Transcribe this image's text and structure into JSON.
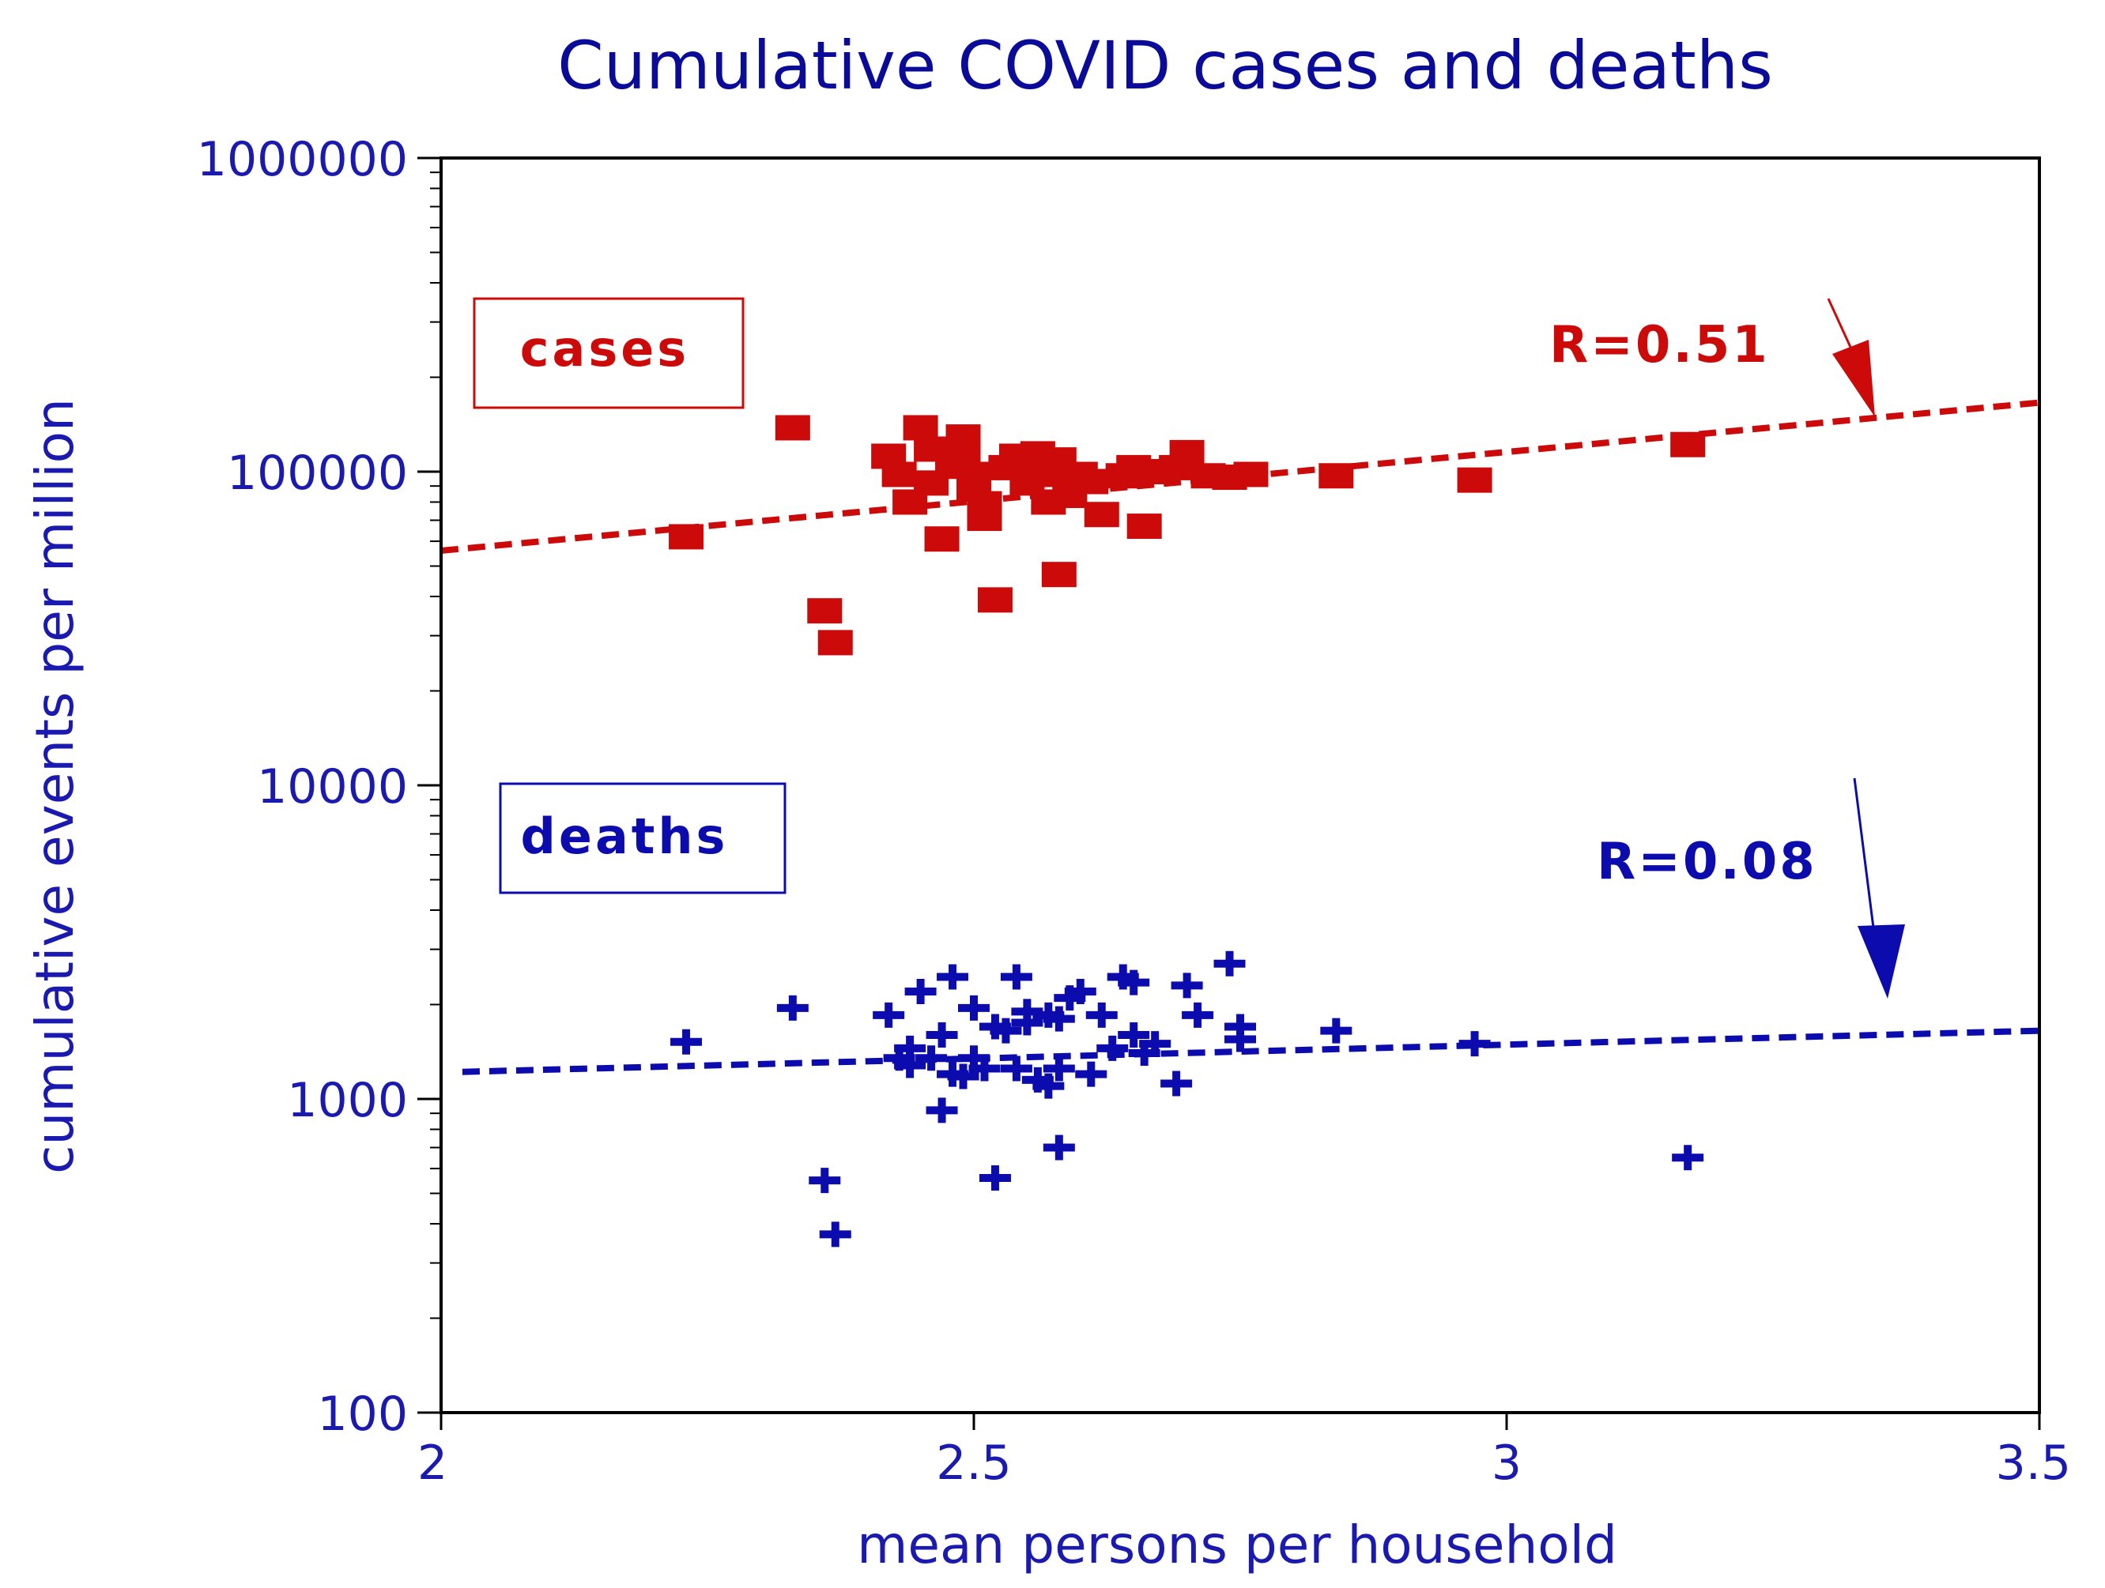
{
  "chart_data": {
    "type": "scatter",
    "title": "Cumulative COVID cases and deaths",
    "xlabel": "mean persons per household",
    "ylabel": "cumulative events per million",
    "xlim": [
      2,
      3.5
    ],
    "ylim": [
      100,
      1000000
    ],
    "yscale": "log",
    "x_ticks": [
      {
        "value": 2,
        "label": "2"
      },
      {
        "value": 2.5,
        "label": "2.5"
      },
      {
        "value": 3,
        "label": "3"
      },
      {
        "value": 3.5,
        "label": "3.5"
      }
    ],
    "y_ticks": [
      {
        "value": 100,
        "label": "100"
      },
      {
        "value": 1000,
        "label": "1000"
      },
      {
        "value": 10000,
        "label": "10000"
      },
      {
        "value": 100000,
        "label": "100000"
      },
      {
        "value": 1000000,
        "label": "1000000"
      }
    ],
    "series": [
      {
        "name": "cases",
        "color": "#cc0a0a",
        "marker": "square",
        "correlation_label": "R=0.51",
        "trend": [
          [
            2.0,
            56000
          ],
          [
            3.5,
            166000
          ]
        ],
        "points": [
          [
            2.23,
            62000
          ],
          [
            2.33,
            138000
          ],
          [
            2.36,
            36000
          ],
          [
            2.37,
            28500
          ],
          [
            2.42,
            112000
          ],
          [
            2.43,
            98000
          ],
          [
            2.44,
            80000
          ],
          [
            2.45,
            138000
          ],
          [
            2.46,
            118000
          ],
          [
            2.46,
            92000
          ],
          [
            2.47,
            61000
          ],
          [
            2.48,
            104000
          ],
          [
            2.49,
            129000
          ],
          [
            2.49,
            112000
          ],
          [
            2.5,
            88000
          ],
          [
            2.5,
            98000
          ],
          [
            2.51,
            79000
          ],
          [
            2.51,
            71000
          ],
          [
            2.52,
            39000
          ],
          [
            2.53,
            103000
          ],
          [
            2.54,
            112000
          ],
          [
            2.55,
            104000
          ],
          [
            2.55,
            92000
          ],
          [
            2.56,
            114000
          ],
          [
            2.57,
            80000
          ],
          [
            2.57,
            98000
          ],
          [
            2.58,
            109000
          ],
          [
            2.58,
            47000
          ],
          [
            2.59,
            84000
          ],
          [
            2.6,
            98000
          ],
          [
            2.61,
            93000
          ],
          [
            2.62,
            73000
          ],
          [
            2.64,
            97000
          ],
          [
            2.65,
            103000
          ],
          [
            2.66,
            67000
          ],
          [
            2.67,
            100000
          ],
          [
            2.69,
            103000
          ],
          [
            2.7,
            115000
          ],
          [
            2.72,
            97000
          ],
          [
            2.74,
            96000
          ],
          [
            2.76,
            98000
          ],
          [
            2.84,
            97000
          ],
          [
            2.97,
            94000
          ],
          [
            3.17,
            122000
          ]
        ]
      },
      {
        "name": "deaths",
        "color": "#0c0cae",
        "marker": "plus",
        "correlation_label": "R=0.08",
        "trend": [
          [
            2.02,
            1220
          ],
          [
            3.5,
            1650
          ]
        ],
        "points": [
          [
            2.23,
            1520
          ],
          [
            2.33,
            1950
          ],
          [
            2.36,
            550
          ],
          [
            2.37,
            370
          ],
          [
            2.42,
            1850
          ],
          [
            2.43,
            1350
          ],
          [
            2.44,
            1450
          ],
          [
            2.44,
            1280
          ],
          [
            2.45,
            2200
          ],
          [
            2.46,
            1350
          ],
          [
            2.47,
            1600
          ],
          [
            2.47,
            920
          ],
          [
            2.48,
            2450
          ],
          [
            2.48,
            1200
          ],
          [
            2.49,
            1180
          ],
          [
            2.5,
            1950
          ],
          [
            2.5,
            1350
          ],
          [
            2.51,
            1250
          ],
          [
            2.52,
            1700
          ],
          [
            2.52,
            560
          ],
          [
            2.53,
            1650
          ],
          [
            2.54,
            2450
          ],
          [
            2.54,
            1250
          ],
          [
            2.55,
            1750
          ],
          [
            2.55,
            1900
          ],
          [
            2.56,
            1150
          ],
          [
            2.57,
            1850
          ],
          [
            2.57,
            1100
          ],
          [
            2.58,
            1250
          ],
          [
            2.58,
            1800
          ],
          [
            2.58,
            700
          ],
          [
            2.59,
            2100
          ],
          [
            2.6,
            2200
          ],
          [
            2.61,
            1200
          ],
          [
            2.62,
            1850
          ],
          [
            2.63,
            1450
          ],
          [
            2.64,
            2450
          ],
          [
            2.65,
            2350
          ],
          [
            2.65,
            1600
          ],
          [
            2.66,
            1400
          ],
          [
            2.67,
            1500
          ],
          [
            2.69,
            1120
          ],
          [
            2.7,
            2300
          ],
          [
            2.71,
            1850
          ],
          [
            2.74,
            2700
          ],
          [
            2.75,
            1700
          ],
          [
            2.75,
            1550
          ],
          [
            2.84,
            1650
          ],
          [
            2.97,
            1500
          ],
          [
            3.17,
            650
          ]
        ]
      }
    ]
  }
}
